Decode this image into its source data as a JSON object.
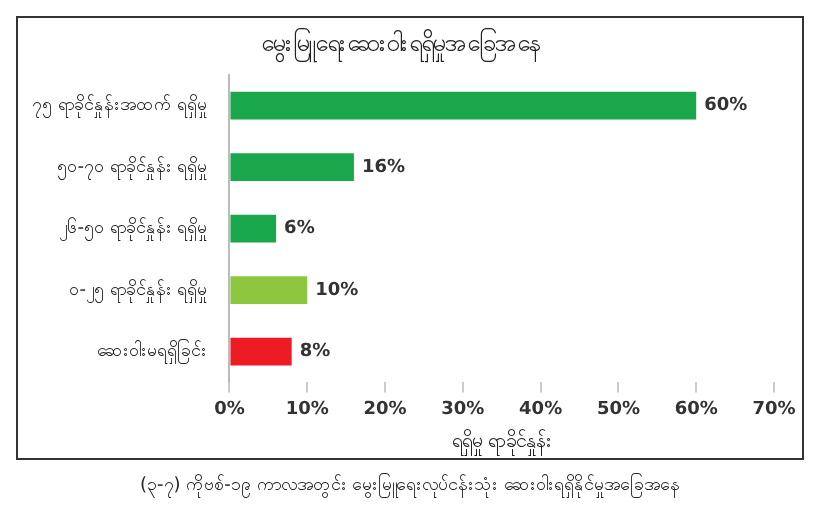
{
  "chart_data": {
    "type": "bar",
    "orientation": "horizontal",
    "title": "မွေးမြူရေးဆေးဝါးရရှိမှုအခြေအနေ",
    "xlabel": "ရရှိမှု ရာခိုင်နှုန်း",
    "categories": [
      "၇၅ ရာခိုင်နှုန်းအထက် ရရှိမှု",
      "၅၀-၇၀ ရာခိုင်နှုန်း ရရှိမှု",
      "၂၆-၅၀ ရာခိုင်နှုန်း ရရှိမှု",
      "၀-၂၅ ရာခိုင်နှုန်း ရရှိမှု",
      "ဆေးဝါးမရရှိခြင်း"
    ],
    "values": [
      60,
      16,
      6,
      10,
      8
    ],
    "colors": [
      "#1aa64a",
      "#1aa64a",
      "#1aa64a",
      "#8dc63f",
      "#ed1c24"
    ],
    "value_labels": [
      "60%",
      "16%",
      "6%",
      "10%",
      "8%"
    ],
    "xlim": [
      0,
      70
    ],
    "xticks": [
      {
        "value": 0,
        "label": "0%"
      },
      {
        "value": 10,
        "label": "10%"
      },
      {
        "value": 20,
        "label": "20%"
      },
      {
        "value": 30,
        "label": "30%"
      },
      {
        "value": 40,
        "label": "40%"
      },
      {
        "value": 50,
        "label": "50%"
      },
      {
        "value": 60,
        "label": "60%"
      },
      {
        "value": 70,
        "label": "70%"
      }
    ],
    "annotations": [
      "(၃-၇) ကိုဗစ်-၁၉ ကာလအတွင်း မွေးမြူရေးလုပ်ငန်းသုံး ဆေးဝါးရရှိနိုင်မှုအခြေအနေ"
    ]
  }
}
